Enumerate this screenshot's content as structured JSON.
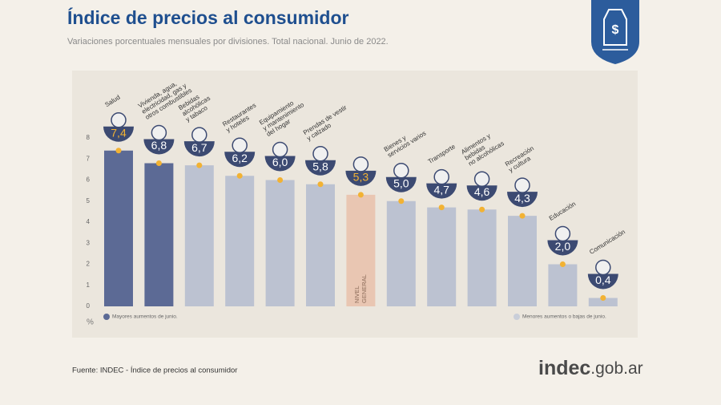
{
  "chart_data": {
    "type": "bar",
    "title": "Índice de precios al consumidor",
    "subtitle": "Variaciones porcentuales mensuales por divisiones. Total nacional. Junio de 2022.",
    "categories": [
      [
        "Salud"
      ],
      [
        "Vivienda, agua,",
        "electricidad, gas y",
        "otros combustibles"
      ],
      [
        "Bebidas",
        "alcohólicas",
        "y tabaco"
      ],
      [
        "Restaurantes",
        "y hoteles"
      ],
      [
        "Equipamiento",
        "y mantenimiento",
        "del hogar"
      ],
      [
        "Prendas de vestir",
        "y calzado"
      ],
      [
        "NIVEL",
        "GENERAL"
      ],
      [
        "Bienes y",
        "servicios varios"
      ],
      [
        "Transporte"
      ],
      [
        "Alimentos y",
        "bebidas",
        "no alcohólicas"
      ],
      [
        "Recreación",
        "y cultura"
      ],
      [
        "Educación"
      ],
      [
        "Comunicación"
      ]
    ],
    "values": [
      7.4,
      6.8,
      6.7,
      6.2,
      6.0,
      5.8,
      5.3,
      5.0,
      4.7,
      4.6,
      4.3,
      2.0,
      0.4
    ],
    "value_labels": [
      "7,4",
      "6,8",
      "6,7",
      "6,2",
      "6,0",
      "5,8",
      "5,3",
      "5,0",
      "4,7",
      "4,6",
      "4,3",
      "2,0",
      "0,4"
    ],
    "colors": [
      "#5c6a95",
      "#5c6a95",
      "#bcc2d1",
      "#bcc2d1",
      "#bcc2d1",
      "#bcc2d1",
      "#e9c6b2",
      "#bcc2d1",
      "#bcc2d1",
      "#bcc2d1",
      "#bcc2d1",
      "#bcc2d1",
      "#bcc2d1"
    ],
    "value_label_colors": [
      "#f2b233",
      "#ffffff",
      "#ffffff",
      "#ffffff",
      "#ffffff",
      "#ffffff",
      "#f2b233",
      "#ffffff",
      "#ffffff",
      "#ffffff",
      "#ffffff",
      "#ffffff",
      "#ffffff"
    ],
    "label_inside": 6,
    "ylim": [
      0,
      8
    ],
    "yticks": [
      0,
      1,
      2,
      3,
      4,
      5,
      6,
      7,
      8
    ],
    "y_unit": "%",
    "legend": [
      {
        "label": "Mayores aumentos de junio.",
        "color": "#5c6a95"
      },
      {
        "label": "Menores aumentos o bajas de junio.",
        "color": "#c9ced9"
      }
    ],
    "source": "Fuente: INDEC - Índice de precios al consumidor",
    "brand": [
      "indec",
      ".gob.ar"
    ]
  }
}
